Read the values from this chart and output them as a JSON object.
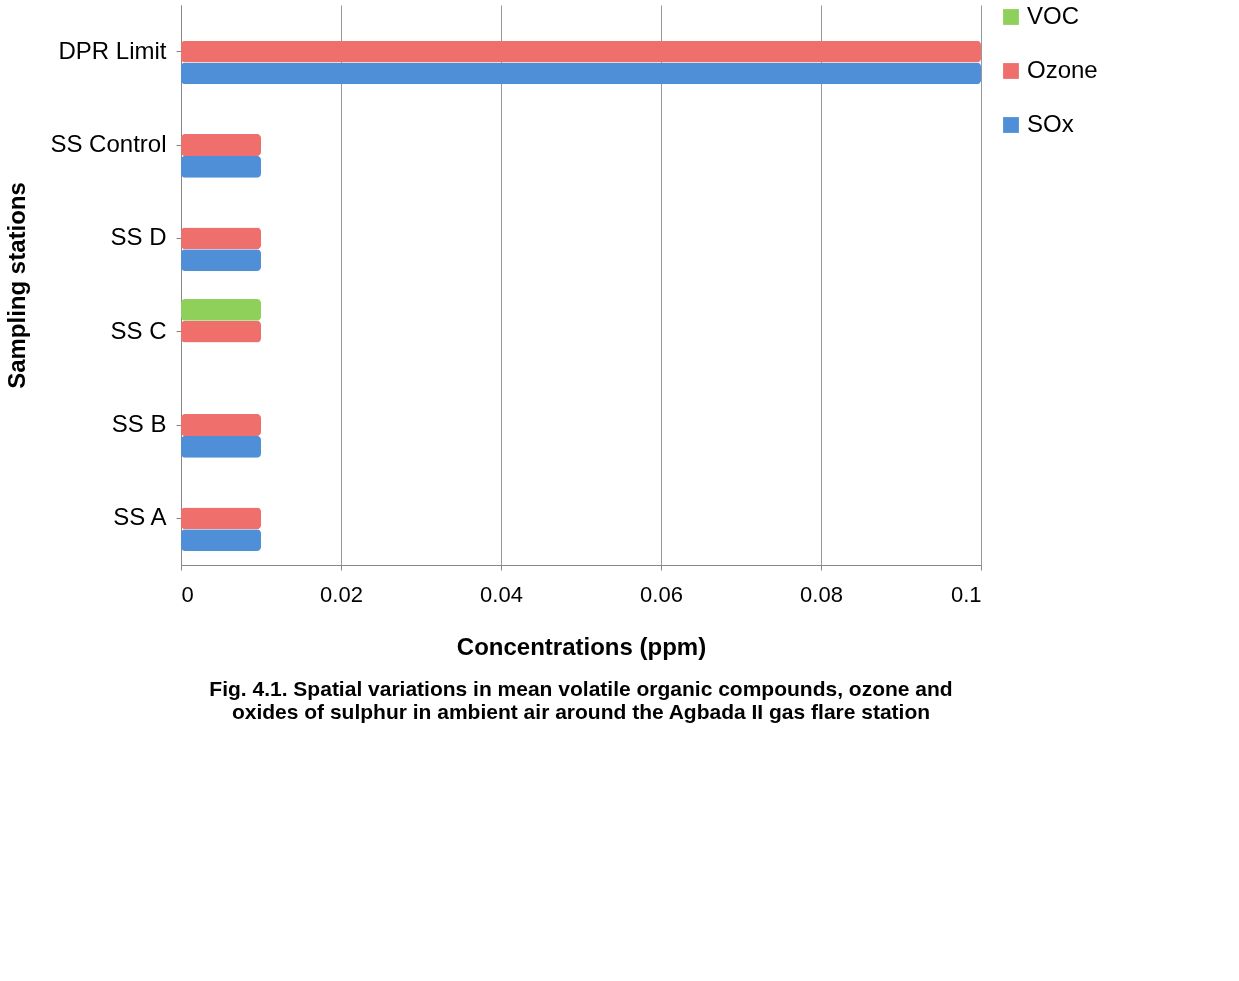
{
  "chart_data": {
    "type": "bar",
    "orientation": "horizontal",
    "xlabel": "Concentrations (ppm)",
    "ylabel": "Sampling stations",
    "categories": [
      "DPR Limit",
      "SS Control",
      "SS D",
      "SS C",
      "SS B",
      "SS A"
    ],
    "series": [
      {
        "name": "VOC",
        "color": "#8fd05a",
        "values": [
          null,
          0,
          0,
          0.01,
          0,
          0
        ]
      },
      {
        "name": "Ozone",
        "color": "#ef6f6c",
        "values": [
          0.1,
          0.01,
          0.01,
          0.01,
          0.01,
          0.01
        ]
      },
      {
        "name": "SOx",
        "color": "#4f8fd8",
        "values": [
          0.1,
          0.01,
          0.01,
          0,
          0.01,
          0.01
        ]
      }
    ],
    "xlim": [
      0,
      0.1
    ],
    "xticks": [
      0,
      0.02,
      0.04,
      0.06,
      0.08,
      0.1
    ],
    "grid": "x",
    "legend": "right",
    "annotations": [
      "Fig. 4.1. Spatial variations in mean volatile organic compounds, ozone and",
      "oxides of sulphur in ambient air around the Agbada II gas flare station"
    ]
  }
}
